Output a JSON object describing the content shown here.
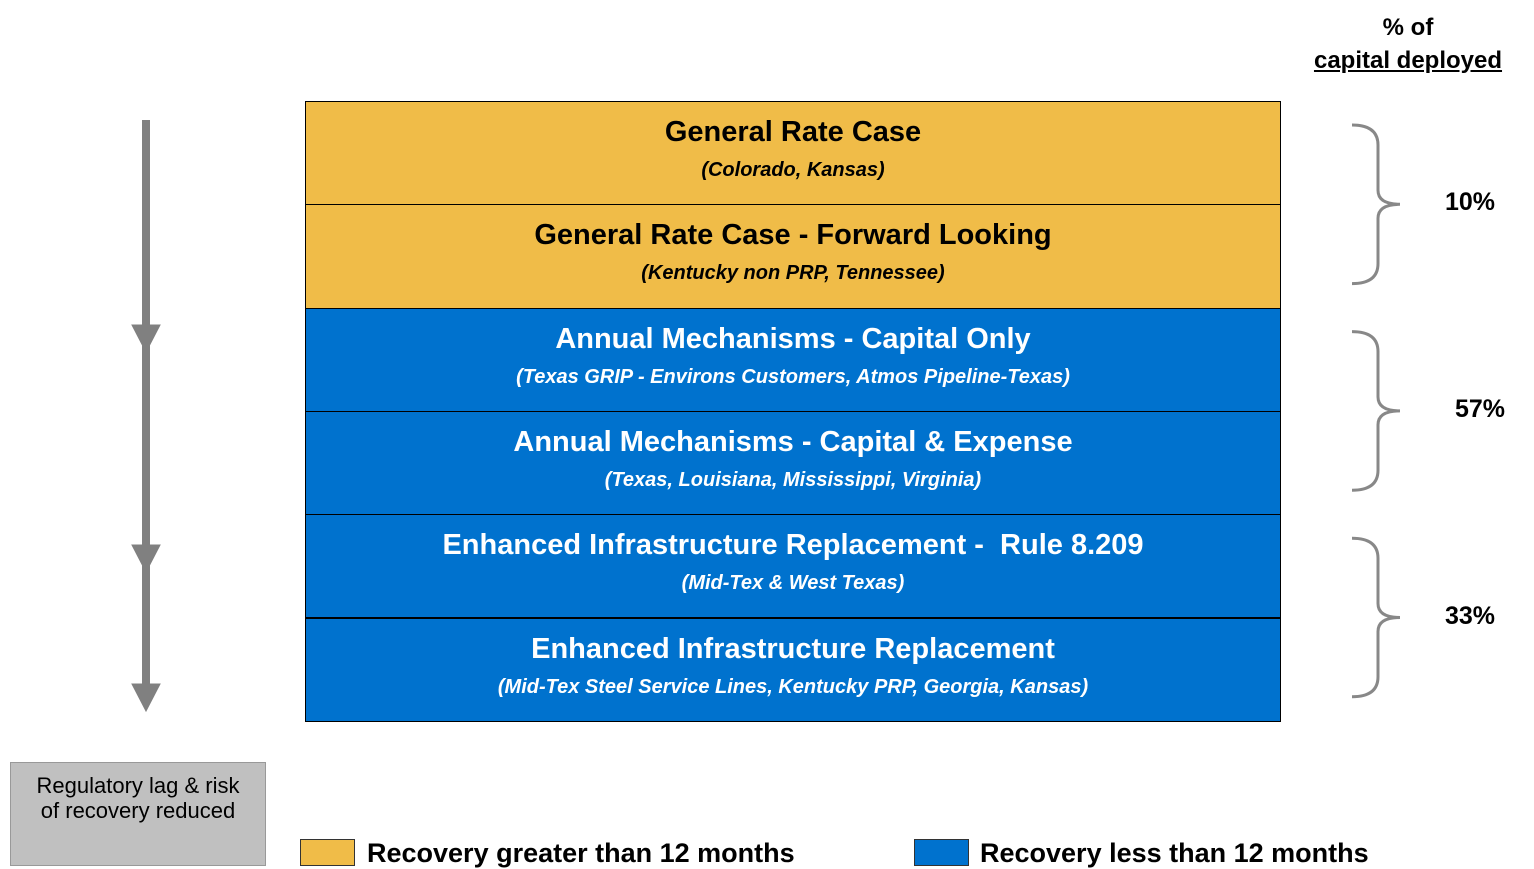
{
  "header": {
    "line1": "% of",
    "line2": "capital deployed"
  },
  "rows": [
    {
      "title": "General Rate Case",
      "subtitle": "(Colorado, Kansas)",
      "color": "#f0bc48"
    },
    {
      "title": "General Rate Case - Forward Looking",
      "subtitle": "(Kentucky non PRP, Tennessee)",
      "color": "#f0bc48"
    },
    {
      "title": "Annual Mechanisms - Capital Only",
      "subtitle": "(Texas GRIP - Environs Customers, Atmos Pipeline-Texas)",
      "color": "#0072ce"
    },
    {
      "title": "Annual Mechanisms - Capital & Expense",
      "subtitle": "(Texas, Louisiana, Mississippi, Virginia)",
      "color": "#0072ce"
    },
    {
      "title": "Enhanced Infrastructure Replacement -  Rule 8.209",
      "subtitle": "(Mid-Tex & West Texas)",
      "color": "#0072ce"
    },
    {
      "title": "Enhanced Infrastructure Replacement",
      "subtitle": "(Mid-Tex Steel Service Lines, Kentucky PRP, Georgia, Kansas)",
      "color": "#0072ce"
    }
  ],
  "groups": [
    {
      "label": "10%"
    },
    {
      "label": "57%"
    },
    {
      "label": "33%"
    }
  ],
  "side_note": "Regulatory lag & risk of recovery reduced",
  "legend": [
    {
      "label": "Recovery greater than 12 months",
      "color": "#f0bc48"
    },
    {
      "label": "Recovery less than 12 months",
      "color": "#0072ce"
    }
  ]
}
